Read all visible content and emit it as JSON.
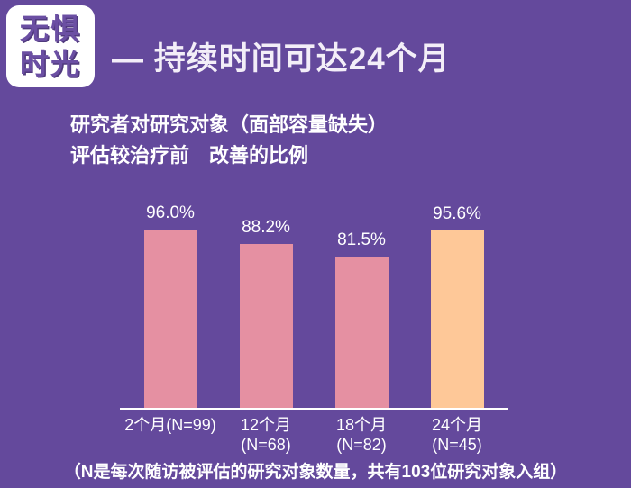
{
  "badge": {
    "line1": "无惧",
    "line2": "时光"
  },
  "header": {
    "title": "— 持续时间可达24个月",
    "subtitle_line1": "研究者对研究对象（面部容量缺失）",
    "subtitle_line2": "评估较治疗前　改善的比例"
  },
  "chart_data": {
    "type": "bar",
    "title": "研究者对研究对象（面部容量缺失）评估较治疗前改善的比例",
    "categories": [
      "2个月(N=99)",
      "12个月 (N=68)",
      "18个月 (N=82)",
      "24个月 (N=45)"
    ],
    "category_lines": [
      [
        "2个月(N=99)"
      ],
      [
        "12个月",
        "(N=68)"
      ],
      [
        "18个月",
        "(N=82)"
      ],
      [
        "24个月",
        "(N=45)"
      ]
    ],
    "values": [
      96.0,
      88.2,
      81.5,
      95.6
    ],
    "value_labels": [
      "96.0%",
      "88.2%",
      "81.5%",
      "95.6%"
    ],
    "unit": "%",
    "xlabel": "",
    "ylabel": "",
    "ylim": [
      0,
      100
    ],
    "grid": false,
    "legend": false,
    "bar_colors": [
      "#e590a2",
      "#e590a2",
      "#e590a2",
      "#fec898"
    ]
  },
  "footer": {
    "note": "（N是每次随访被评估的研究对象数量，共有103位研究对象入组）"
  },
  "colors": {
    "background": "#64499c",
    "badge_bg": "#ffffff",
    "badge_text": "#6b4fa3",
    "title_text": "#f3eef8",
    "body_text": "#ffffff",
    "axis": "#ffffff"
  }
}
